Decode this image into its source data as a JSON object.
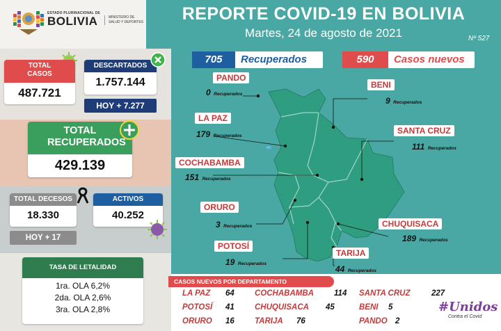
{
  "header": {
    "logo_text_small": "ESTADO PLURINACIONAL DE",
    "logo_text_big": "BOLIVIA",
    "ministry_line1": "MINISTERIO DE",
    "ministry_line2": "SALUD Y DEPORTES",
    "title": "REPORTE COVID-19 EN BOLIVIA",
    "date": "Martes, 24 de agosto de 2021",
    "report_number": "Nº 527"
  },
  "stats": {
    "total_casos_label": "TOTAL CASOS",
    "total_casos": "487.721",
    "descartados_label": "DESCARTADOS",
    "descartados": "1.757.144",
    "descartados_hoy": "HOY + 7.277",
    "total_recuperados_label": "TOTAL RECUPERADOS",
    "total_recuperados": "429.139",
    "total_decesos_label": "TOTAL DECESOS",
    "total_decesos": "18.330",
    "decesos_hoy": "HOY + 17",
    "activos_label": "ACTIVOS",
    "activos": "40.252"
  },
  "letalidad": {
    "title": "TASA DE LETALIDAD",
    "rows": [
      "1ra. OLA 6,2%",
      "2da. OLA 2,6%",
      "3ra. OLA 2,8%"
    ]
  },
  "map": {
    "recuperados_count": "705",
    "recuperados_label": "Recuperados",
    "casos_count": "590",
    "casos_label": "Casos nuevos",
    "recovered_suffix": "Recuperados",
    "departments": [
      {
        "name": "PANDO",
        "value": "0"
      },
      {
        "name": "BENI",
        "value": "9"
      },
      {
        "name": "LA PAZ",
        "value": "179"
      },
      {
        "name": "SANTA CRUZ",
        "value": "111"
      },
      {
        "name": "COCHABAMBA",
        "value": "151"
      },
      {
        "name": "ORURO",
        "value": "3"
      },
      {
        "name": "CHUQUISACA",
        "value": "189"
      },
      {
        "name": "POTOSÍ",
        "value": "19"
      },
      {
        "name": "TARIJA",
        "value": "44"
      }
    ]
  },
  "casos_nuevos": {
    "title": "CASOS NUEVOS POR DEPARTAMENTO",
    "rows": [
      [
        {
          "name": "LA PAZ",
          "value": "64"
        },
        {
          "name": "COCHABAMBA",
          "value": "114"
        },
        {
          "name": "SANTA CRUZ",
          "value": "227"
        }
      ],
      [
        {
          "name": "POTOSÍ",
          "value": "41"
        },
        {
          "name": "CHUQUISACA",
          "value": "45"
        },
        {
          "name": "BENI",
          "value": "5"
        }
      ],
      [
        {
          "name": "ORURO",
          "value": "16"
        },
        {
          "name": "TARIJA",
          "value": "76"
        },
        {
          "name": "PANDO",
          "value": "2"
        }
      ]
    ]
  },
  "campaign": {
    "hashtag": "#Unidos",
    "tagline": "Contra el Covid"
  },
  "colors": {
    "teal": "#4aa8a4",
    "red": "#e04b4b",
    "navy": "#1d3c78",
    "green": "#2f7d4f"
  }
}
